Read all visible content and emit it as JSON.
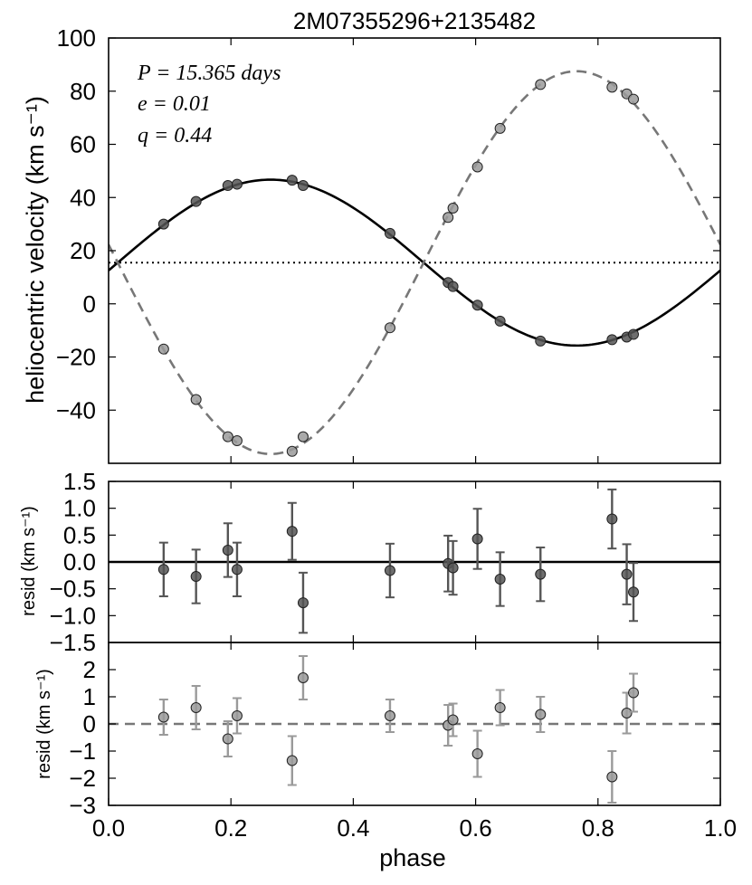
{
  "chart_data": [
    {
      "panel": "main",
      "type": "scatter",
      "title": "2M07355296+2135482",
      "ylabel": "heliocentric velocity (km s⁻¹)",
      "xlabel": "",
      "xlim": [
        0.0,
        1.0
      ],
      "ylim": [
        -60,
        100
      ],
      "yticks": [
        -40,
        -20,
        0,
        20,
        40,
        60,
        80,
        100
      ],
      "yticklabels": [
        "−40",
        "−20",
        "0",
        "20",
        "40",
        "60",
        "80",
        "100"
      ],
      "annotations": [
        "P = 15.365 days",
        "e = 0.01",
        "q = 0.44"
      ],
      "systemic_velocity": 15.5,
      "models": [
        {
          "name": "primary model",
          "gamma": 15.5,
          "K": 31.2,
          "phase0": 0.015,
          "style": "solid",
          "color": "#000000"
        },
        {
          "name": "secondary model",
          "gamma": 15.5,
          "K": -72.0,
          "phase0": 0.015,
          "style": "dashed",
          "color": "#777777"
        }
      ],
      "series": [
        {
          "name": "primary",
          "color": "#555555",
          "x": [
            0.09,
            0.143,
            0.195,
            0.21,
            0.3,
            0.318,
            0.46,
            0.555,
            0.563,
            0.603,
            0.64,
            0.706,
            0.823,
            0.847,
            0.858
          ],
          "y": [
            30,
            38.5,
            44.5,
            45,
            46.5,
            44.5,
            26.5,
            8,
            6.5,
            -0.5,
            -6.5,
            -14,
            -13.5,
            -12.5,
            -11.5
          ]
        },
        {
          "name": "secondary",
          "color": "#9a9a9a",
          "x": [
            0.09,
            0.143,
            0.195,
            0.21,
            0.3,
            0.318,
            0.46,
            0.555,
            0.563,
            0.603,
            0.64,
            0.706,
            0.823,
            0.847,
            0.858
          ],
          "y": [
            -17,
            -36,
            -50,
            -51.5,
            -55.5,
            -50,
            -9,
            32.5,
            36,
            51.5,
            66,
            82.5,
            81.5,
            79,
            77
          ]
        }
      ]
    },
    {
      "panel": "primary residuals",
      "type": "scatter",
      "ylabel": "resid (km s⁻¹)",
      "xlim": [
        0.0,
        1.0
      ],
      "ylim": [
        -1.5,
        1.5
      ],
      "yticks": [
        -1.5,
        -1.0,
        -0.5,
        0.0,
        0.5,
        1.0,
        1.5
      ],
      "yticklabels": [
        "−1.5",
        "−1.0",
        "−0.5",
        "0.0",
        "0.5",
        "1.0",
        "1.5"
      ],
      "zero_line_style": "solid",
      "series": [
        {
          "name": "primary residuals",
          "color": "#555555",
          "x": [
            0.09,
            0.143,
            0.195,
            0.21,
            0.3,
            0.318,
            0.46,
            0.555,
            0.563,
            0.603,
            0.64,
            0.706,
            0.823,
            0.847,
            0.858
          ],
          "y": [
            -0.14,
            -0.27,
            0.22,
            -0.14,
            0.57,
            -0.76,
            -0.16,
            -0.03,
            -0.11,
            0.43,
            -0.32,
            -0.23,
            0.8,
            -0.23,
            -0.56
          ],
          "err": [
            0.5,
            0.5,
            0.5,
            0.5,
            0.53,
            0.56,
            0.5,
            0.52,
            0.5,
            0.56,
            0.5,
            0.5,
            0.55,
            0.56,
            0.54
          ]
        }
      ]
    },
    {
      "panel": "secondary residuals",
      "type": "scatter",
      "ylabel": "resid (km s⁻¹)",
      "xlabel": "phase",
      "xlim": [
        0.0,
        1.0
      ],
      "ylim": [
        -3,
        3
      ],
      "yticks": [
        -3,
        -2,
        -1,
        0,
        1,
        2
      ],
      "yticklabels": [
        "−3",
        "−2",
        "−1",
        "0",
        "1",
        "2"
      ],
      "xticks": [
        0.0,
        0.2,
        0.4,
        0.6,
        0.8,
        1.0
      ],
      "xticklabels": [
        "0.0",
        "0.2",
        "0.4",
        "0.6",
        "0.8",
        "1.0"
      ],
      "zero_line_style": "dashed",
      "series": [
        {
          "name": "secondary residuals",
          "color": "#9a9a9a",
          "x": [
            0.09,
            0.143,
            0.195,
            0.21,
            0.3,
            0.318,
            0.46,
            0.555,
            0.563,
            0.603,
            0.64,
            0.706,
            0.823,
            0.847,
            0.858
          ],
          "y": [
            0.25,
            0.6,
            -0.55,
            0.3,
            -1.35,
            1.7,
            0.3,
            -0.05,
            0.15,
            -1.1,
            0.6,
            0.35,
            -1.95,
            0.4,
            1.15
          ],
          "err": [
            0.65,
            0.8,
            0.65,
            0.65,
            0.9,
            0.8,
            0.6,
            0.75,
            0.6,
            0.85,
            0.65,
            0.65,
            0.95,
            0.75,
            0.7
          ]
        }
      ]
    }
  ]
}
